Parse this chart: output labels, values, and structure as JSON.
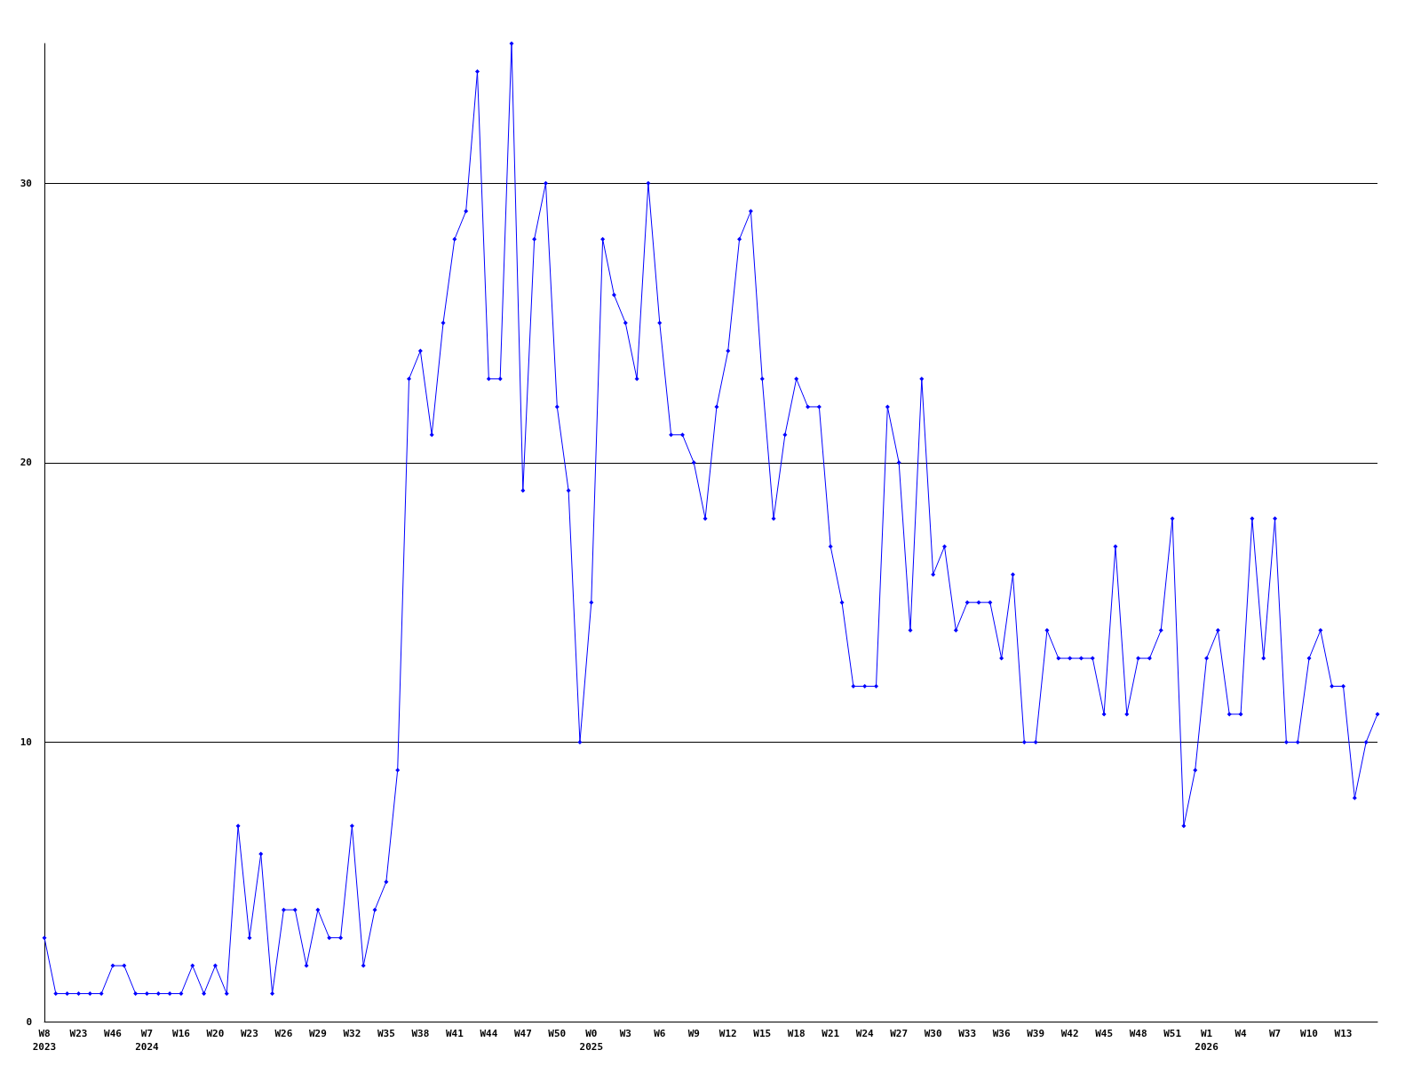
{
  "chart_data": {
    "type": "line",
    "categories": [
      "W8\n2023",
      null,
      null,
      "W23",
      null,
      null,
      "W46",
      null,
      null,
      "W7\n2024",
      null,
      null,
      "W16",
      null,
      null,
      "W20",
      null,
      null,
      "W23",
      null,
      null,
      "W26",
      null,
      null,
      "W29",
      null,
      null,
      "W32",
      null,
      null,
      "W35",
      null,
      null,
      "W38",
      null,
      null,
      "W41",
      null,
      null,
      "W44",
      null,
      null,
      "W47",
      null,
      null,
      "W50",
      null,
      null,
      "W0\n2025",
      null,
      null,
      "W3",
      null,
      null,
      "W6",
      null,
      null,
      "W9",
      null,
      null,
      "W12",
      null,
      null,
      "W15",
      null,
      null,
      "W18",
      null,
      null,
      "W21",
      null,
      null,
      "W24",
      null,
      null,
      "W27",
      null,
      null,
      "W30",
      null,
      null,
      "W33",
      null,
      null,
      "W36",
      null,
      null,
      "W39",
      null,
      null,
      "W42",
      null,
      null,
      "W45",
      null,
      null,
      "W48",
      null,
      null,
      "W51",
      null,
      null,
      "W1\n2026",
      null,
      null,
      "W4",
      null,
      null,
      "W7",
      null,
      null,
      "W10",
      null,
      null,
      "W13",
      null,
      null,
      null
    ],
    "series": [
      {
        "color": "#0000ff",
        "values": [
          3,
          1,
          1,
          1,
          1,
          1,
          2,
          2,
          1,
          1,
          1,
          1,
          1,
          2,
          1,
          2,
          1,
          7,
          3,
          6,
          1,
          4,
          4,
          2,
          4,
          3,
          3,
          7,
          2,
          4,
          5,
          9,
          23,
          24,
          21,
          25,
          28,
          29,
          34,
          23,
          23,
          35,
          19,
          28,
          30,
          22,
          19,
          10,
          15,
          28,
          26,
          25,
          23,
          30,
          25,
          21,
          21,
          20,
          18,
          22,
          24,
          28,
          29,
          23,
          18,
          21,
          23,
          22,
          22,
          17,
          15,
          12,
          12,
          12,
          22,
          20,
          14,
          23,
          16,
          17,
          14,
          15,
          15,
          15,
          13,
          16,
          10,
          10,
          14,
          13,
          13,
          13,
          13,
          11,
          17,
          11,
          13,
          13,
          14,
          18,
          7,
          9,
          13,
          14,
          11,
          11,
          18,
          13,
          18,
          10,
          10,
          13,
          14,
          12,
          12,
          8,
          10,
          11
        ]
      }
    ],
    "ylim": [
      0,
      35
    ],
    "yticks": [
      0,
      10,
      20,
      30
    ],
    "grid": "y",
    "marker": "diamond",
    "line_style": "solid"
  }
}
